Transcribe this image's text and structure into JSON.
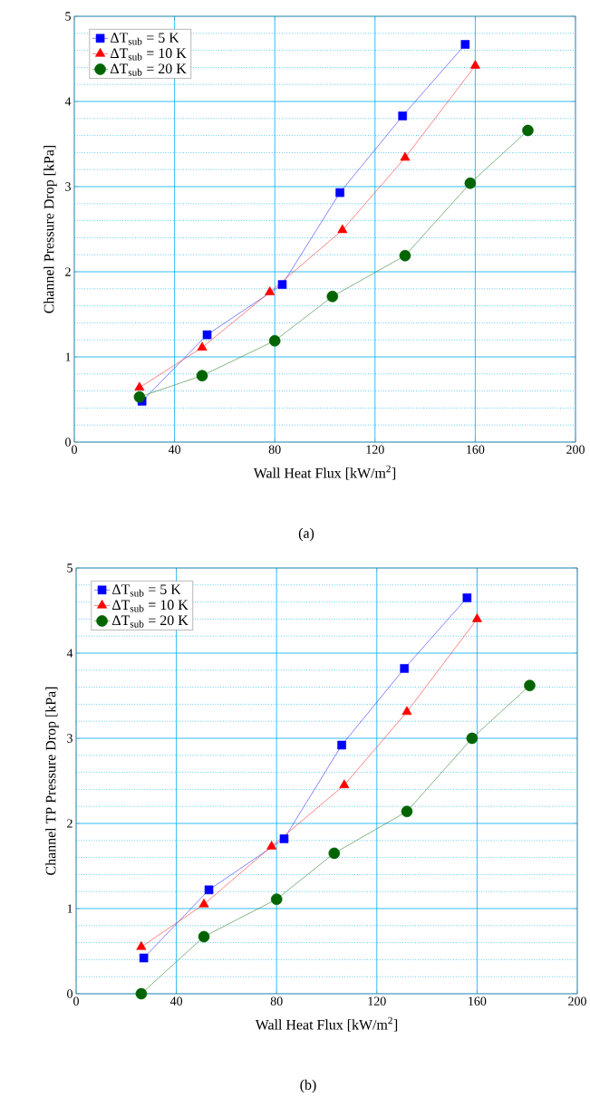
{
  "chart_data": [
    {
      "type": "line",
      "xlabel": "Wall Heat Flux [kW/m$^{2}$]",
      "ylabel": "Channel Pressure Drop [kPa]",
      "annotations": [
        "(a)"
      ],
      "xlim": [
        0,
        200
      ],
      "xticks": [
        0,
        40,
        80,
        120,
        160,
        200
      ],
      "ylim": [
        0,
        5
      ],
      "yticks": [
        0,
        {
          "value": 0.2,
          "label": null
        },
        {
          "value": 0.4,
          "label": null
        },
        {
          "value": 0.6,
          "label": null
        },
        {
          "value": 0.8,
          "label": null
        },
        1,
        {
          "value": 1.2,
          "label": null
        },
        {
          "value": 1.4,
          "label": null
        },
        {
          "value": 1.6,
          "label": null
        },
        {
          "value": 1.8,
          "label": null
        },
        2,
        {
          "value": 2.2,
          "label": null
        },
        {
          "value": 2.4,
          "label": null
        },
        {
          "value": 2.6,
          "label": null
        },
        {
          "value": 2.8,
          "label": null
        },
        3,
        {
          "value": 3.2,
          "label": null
        },
        {
          "value": 3.4,
          "label": null
        },
        {
          "value": 3.6,
          "label": null
        },
        {
          "value": 3.8,
          "label": null
        },
        4,
        {
          "value": 4.2,
          "label": null
        },
        {
          "value": 4.4,
          "label": null
        },
        {
          "value": 4.6,
          "label": null
        },
        {
          "value": 4.8,
          "label": null
        },
        5
      ],
      "grid": true,
      "legend": "top left",
      "series": [
        {
          "name": "ΔT$_{sub}$ = 5 K",
          "color": "#0000ff",
          "marker": "square",
          "x": [
            27,
            53,
            83,
            106,
            131,
            156
          ],
          "values": [
            0.48,
            1.26,
            1.85,
            2.93,
            3.83,
            4.67
          ]
        },
        {
          "name": "ΔT$_{sub}$ = 10 K",
          "color": "#ff0000",
          "marker": "triangle",
          "x": [
            26,
            51,
            78,
            107,
            132,
            160
          ],
          "values": [
            0.64,
            1.11,
            1.76,
            2.49,
            3.34,
            4.42
          ]
        },
        {
          "name": "ΔT$_{sub}$ = 20 K",
          "color": "#006400",
          "marker": "circle",
          "x": [
            26,
            51,
            80,
            103,
            132,
            158,
            181
          ],
          "values": [
            0.53,
            0.78,
            1.19,
            1.71,
            2.19,
            3.04,
            3.66
          ]
        }
      ]
    },
    {
      "type": "line",
      "xlabel": "Wall Heat Flux [kW/m$^{2}$]",
      "ylabel": "Channel TP Pressure Drop [kPa]",
      "annotations": [
        "(b)"
      ],
      "xlim": [
        0,
        200
      ],
      "xticks": [
        0,
        40,
        80,
        120,
        160,
        200
      ],
      "ylim": [
        0,
        5
      ],
      "yticks": [
        0,
        {
          "value": 0.2,
          "label": null
        },
        {
          "value": 0.4,
          "label": null
        },
        {
          "value": 0.6,
          "label": null
        },
        {
          "value": 0.8,
          "label": null
        },
        1,
        {
          "value": 1.2,
          "label": null
        },
        {
          "value": 1.4,
          "label": null
        },
        {
          "value": 1.6,
          "label": null
        },
        {
          "value": 1.8,
          "label": null
        },
        2,
        {
          "value": 2.2,
          "label": null
        },
        {
          "value": 2.4,
          "label": null
        },
        {
          "value": 2.6,
          "label": null
        },
        {
          "value": 2.8,
          "label": null
        },
        3,
        {
          "value": 3.2,
          "label": null
        },
        {
          "value": 3.4,
          "label": null
        },
        {
          "value": 3.6,
          "label": null
        },
        {
          "value": 3.8,
          "label": null
        },
        4,
        {
          "value": 4.2,
          "label": null
        },
        {
          "value": 4.4,
          "label": null
        },
        {
          "value": 4.6,
          "label": null
        },
        {
          "value": 4.8,
          "label": null
        },
        5
      ],
      "grid": true,
      "legend": "top left",
      "series": [
        {
          "name": "ΔT$_{sub}$ = 5 K",
          "color": "#0000ff",
          "marker": "square",
          "x": [
            27,
            53,
            83,
            106,
            131,
            156
          ],
          "values": [
            0.42,
            1.22,
            1.82,
            2.92,
            3.82,
            4.65
          ]
        },
        {
          "name": "ΔT$_{sub}$ = 10 K",
          "color": "#ff0000",
          "marker": "triangle",
          "x": [
            26,
            51,
            78,
            107,
            132,
            160
          ],
          "values": [
            0.55,
            1.05,
            1.73,
            2.45,
            3.31,
            4.4
          ]
        },
        {
          "name": "ΔT$_{sub}$ = 20 K",
          "color": "#006400",
          "marker": "circle",
          "x": [
            26,
            51,
            80,
            103,
            132,
            158,
            181
          ],
          "values": [
            0,
            0.67,
            1.11,
            1.65,
            2.14,
            3.0,
            3.62
          ]
        }
      ]
    }
  ]
}
